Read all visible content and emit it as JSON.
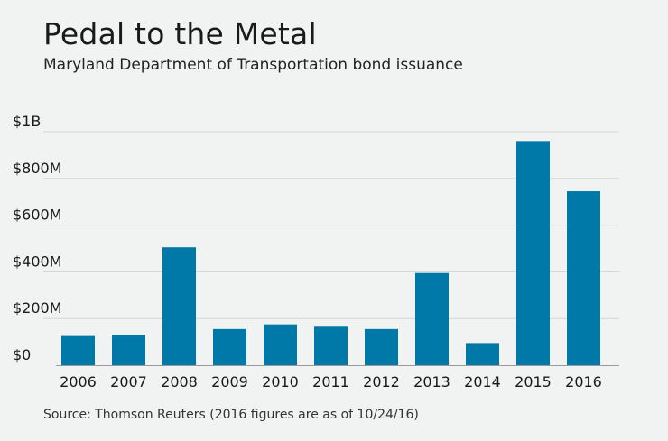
{
  "header": {
    "title": "Pedal to the Metal",
    "subtitle": "Maryland Department of Transportation bond issuance"
  },
  "footer": {
    "source": "Source: Thomson Reuters (2016 figures are as of 10/24/16)"
  },
  "colors": {
    "bar": "#0079a8",
    "grid": "#d4d4d4",
    "axis": "#9a9a9a",
    "background": "#f1f2f2"
  },
  "chart_data": {
    "type": "bar",
    "title": "Pedal to the Metal",
    "subtitle": "Maryland Department of Transportation bond issuance",
    "xlabel": "",
    "ylabel": "",
    "categories": [
      "2006",
      "2007",
      "2008",
      "2009",
      "2010",
      "2011",
      "2012",
      "2013",
      "2014",
      "2015",
      "2016"
    ],
    "values": [
      125,
      130,
      505,
      155,
      175,
      165,
      155,
      395,
      95,
      960,
      745
    ],
    "units": "millions of dollars",
    "ylim": [
      0,
      1000
    ],
    "yticks": [
      {
        "value": 0,
        "label": "$0"
      },
      {
        "value": 200,
        "label": "$200M"
      },
      {
        "value": 400,
        "label": "$400M"
      },
      {
        "value": 600,
        "label": "$600M"
      },
      {
        "value": 800,
        "label": "$800M"
      },
      {
        "value": 1000,
        "label": "$1B"
      }
    ],
    "grid": true,
    "legend": "none"
  }
}
